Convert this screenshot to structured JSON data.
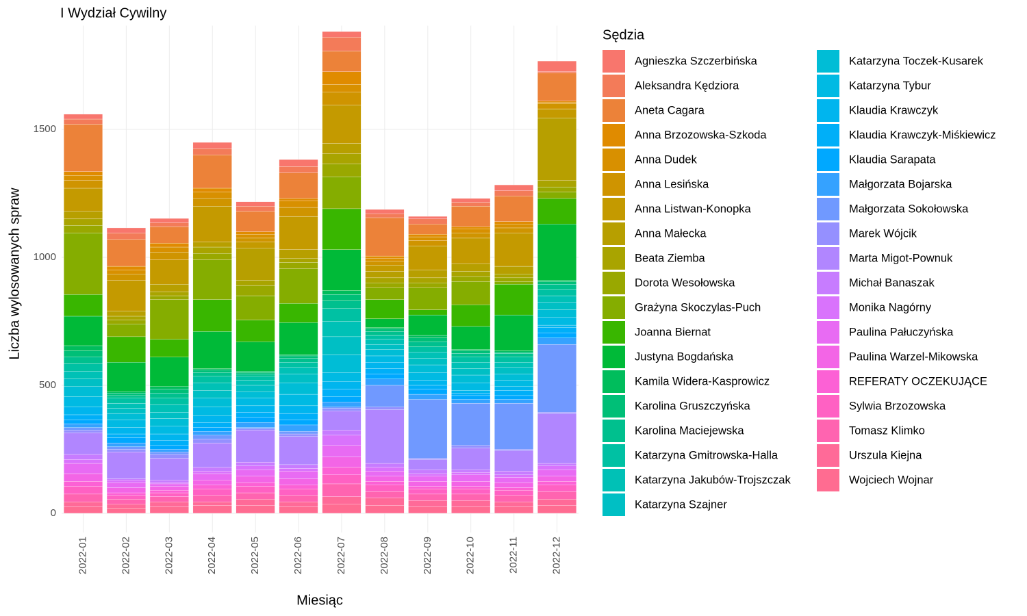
{
  "chart_data": {
    "type": "stacked_bar",
    "title": "I Wydział Cywilny",
    "x_label": "Miesiąc",
    "y_label": "Liczba wylosowanych spraw",
    "legend_title": "Sędzia",
    "legend": "right",
    "grid": true,
    "categories": [
      "2022-01",
      "2022-02",
      "2022-03",
      "2022-04",
      "2022-05",
      "2022-06",
      "2022-07",
      "2022-08",
      "2022-09",
      "2022-10",
      "2022-11",
      "2022-12"
    ],
    "ylim": [
      -75,
      1905
    ],
    "yticks": [
      0,
      500,
      1000,
      1500
    ],
    "series": [
      {
        "name": "Agnieszka Szczerbińska",
        "color": "#F8766D",
        "values": [
          19,
          20,
          17,
          24,
          17,
          27,
          22,
          17,
          10,
          15,
          23,
          42
        ]
      },
      {
        "name": "Aleksandra Kędziora",
        "color": "#F37B59",
        "values": [
          20,
          25,
          15,
          25,
          20,
          25,
          55,
          15,
          20,
          15,
          20,
          5
        ]
      },
      {
        "name": "Aneta Cagara",
        "color": "#EC8239",
        "values": [
          185,
          105,
          65,
          130,
          80,
          100,
          80,
          150,
          40,
          80,
          100,
          110
        ]
      },
      {
        "name": "Anna Brzozowska-Szkoda",
        "color": "#E08B00",
        "values": [
          15,
          15,
          15,
          15,
          10,
          10,
          50,
          10,
          10,
          10,
          10,
          5
        ]
      },
      {
        "name": "Anna Dudek",
        "color": "#D89000",
        "values": [
          20,
          15,
          20,
          25,
          15,
          25,
          30,
          10,
          15,
          15,
          15,
          5
        ]
      },
      {
        "name": "Anna Lesińska",
        "color": "#CF9400",
        "values": [
          30,
          25,
          30,
          30,
          15,
          35,
          50,
          15,
          20,
          20,
          20,
          20
        ]
      },
      {
        "name": "Anna Listwan-Konopka",
        "color": "#C49A00",
        "values": [
          90,
          120,
          95,
          140,
          25,
          130,
          150,
          25,
          95,
          100,
          130,
          35
        ]
      },
      {
        "name": "Anna Małecka",
        "color": "#B79F00",
        "values": [
          30,
          20,
          30,
          20,
          125,
          35,
          40,
          25,
          30,
          30,
          30,
          245
        ]
      },
      {
        "name": "Beata Ziemba",
        "color": "#A9A400",
        "values": [
          25,
          15,
          15,
          25,
          20,
          15,
          40,
          20,
          20,
          20,
          15,
          25
        ]
      },
      {
        "name": "Dorota Wesołowska",
        "color": "#99A800",
        "values": [
          30,
          15,
          15,
          25,
          40,
          25,
          50,
          20,
          20,
          20,
          15,
          20
        ]
      },
      {
        "name": "Grażyna Skoczylas-Puch",
        "color": "#85AD00",
        "values": [
          240,
          50,
          155,
          155,
          95,
          135,
          125,
          45,
          85,
          90,
          10,
          25
        ]
      },
      {
        "name": "Joanna Biernat",
        "color": "#39B600",
        "values": [
          85,
          100,
          70,
          125,
          85,
          75,
          160,
          75,
          20,
          85,
          120,
          100
        ]
      },
      {
        "name": "Justyna Bogdańska",
        "color": "#00BA38",
        "values": [
          115,
          115,
          115,
          145,
          115,
          125,
          160,
          35,
          80,
          90,
          140,
          220
        ]
      },
      {
        "name": "Kamila Widera-Kasprowicz",
        "color": "#00BD5C",
        "values": [
          20,
          5,
          10,
          5,
          5,
          5,
          15,
          5,
          10,
          5,
          5,
          5
        ]
      },
      {
        "name": "Karolina Gruszczyńska",
        "color": "#00BF77",
        "values": [
          25,
          10,
          15,
          10,
          5,
          10,
          25,
          10,
          15,
          10,
          5,
          10
        ]
      },
      {
        "name": "Karolina Maciejewska",
        "color": "#00C08E",
        "values": [
          25,
          10,
          20,
          15,
          10,
          15,
          30,
          15,
          20,
          15,
          15,
          20
        ]
      },
      {
        "name": "Katarzyna Gmitrowska-Halla",
        "color": "#00C1A3",
        "values": [
          30,
          20,
          25,
          25,
          15,
          20,
          50,
          15,
          20,
          20,
          20,
          25
        ]
      },
      {
        "name": "Katarzyna Jakubów-Trojszczak",
        "color": "#00C1B6",
        "values": [
          30,
          20,
          30,
          30,
          20,
          25,
          60,
          20,
          25,
          25,
          20,
          25
        ]
      },
      {
        "name": "Katarzyna Szajner",
        "color": "#00BFC4",
        "values": [
          30,
          20,
          25,
          30,
          25,
          35,
          70,
          20,
          25,
          25,
          25,
          30
        ]
      },
      {
        "name": "Katarzyna Toczek-Kusarek",
        "color": "#00BDD6",
        "values": [
          40,
          25,
          30,
          35,
          25,
          45,
          70,
          25,
          30,
          30,
          25,
          30
        ]
      },
      {
        "name": "Katarzyna Tybur",
        "color": "#00BAE3",
        "values": [
          40,
          30,
          30,
          35,
          30,
          45,
          35,
          25,
          30,
          30,
          25,
          30
        ]
      },
      {
        "name": "Klaudia Krawczyk",
        "color": "#00B5EE",
        "values": [
          30,
          25,
          25,
          25,
          25,
          30,
          30,
          25,
          20,
          10,
          15,
          10
        ]
      },
      {
        "name": "Klaudia Krawczyk-Miśkiewicz",
        "color": "#00AFF8",
        "values": [
          20,
          15,
          20,
          20,
          20,
          25,
          30,
          20,
          15,
          10,
          20,
          20
        ]
      },
      {
        "name": "Klaudia Sarapata",
        "color": "#00A8FF",
        "values": [
          15,
          20,
          15,
          15,
          20,
          20,
          20,
          20,
          20,
          15,
          15,
          20
        ]
      },
      {
        "name": "Małgorzata Bojarska",
        "color": "#35A2FF",
        "values": [
          15,
          15,
          10,
          15,
          20,
          25,
          20,
          25,
          20,
          15,
          15,
          25
        ]
      },
      {
        "name": "Małgorzata Sokołowska",
        "color": "#7099FF",
        "values": [
          10,
          10,
          10,
          15,
          5,
          10,
          5,
          85,
          230,
          165,
          180,
          265
        ]
      },
      {
        "name": "Marek Wójcik",
        "color": "#9590FF",
        "values": [
          10,
          10,
          15,
          15,
          5,
          10,
          10,
          10,
          5,
          10,
          5,
          5
        ]
      },
      {
        "name": "Marta Migot-Pownuk",
        "color": "#B186FF",
        "values": [
          85,
          105,
          85,
          95,
          125,
          110,
          75,
          210,
          40,
          85,
          80,
          195
        ]
      },
      {
        "name": "Michał Banaszak",
        "color": "#C77CFF",
        "values": [
          20,
          5,
          10,
          15,
          15,
          15,
          20,
          15,
          15,
          10,
          15,
          10
        ]
      },
      {
        "name": "Monika Nagórny",
        "color": "#D973FC",
        "values": [
          15,
          10,
          5,
          10,
          15,
          10,
          40,
          15,
          10,
          10,
          10,
          15
        ]
      },
      {
        "name": "Paulina Pałuczyńska",
        "color": "#E86BF3",
        "values": [
          40,
          20,
          10,
          25,
          25,
          30,
          45,
          20,
          20,
          25,
          20,
          25
        ]
      },
      {
        "name": "Paulina Warzel-Mikowska",
        "color": "#F365E6",
        "values": [
          30,
          20,
          15,
          20,
          25,
          25,
          40,
          20,
          20,
          20,
          20,
          20
        ]
      },
      {
        "name": "REFERATY OCZEKUJĄCE",
        "color": "#FC61D5",
        "values": [
          20,
          10,
          10,
          15,
          15,
          15,
          30,
          15,
          10,
          10,
          10,
          15
        ]
      },
      {
        "name": "Sylwia Brzozowska",
        "color": "#FF61C3",
        "values": [
          30,
          15,
          15,
          25,
          25,
          25,
          35,
          25,
          20,
          20,
          20,
          25
        ]
      },
      {
        "name": "Tomasz Klimko",
        "color": "#FF64B0",
        "values": [
          30,
          20,
          20,
          25,
          25,
          25,
          50,
          25,
          25,
          25,
          25,
          30
        ]
      },
      {
        "name": "Urszula Kiejna",
        "color": "#FF6A98",
        "values": [
          20,
          15,
          20,
          15,
          25,
          20,
          30,
          30,
          25,
          25,
          20,
          25
        ]
      },
      {
        "name": "Wojciech Wojnar",
        "color": "#FF6C91",
        "values": [
          25,
          20,
          25,
          30,
          30,
          25,
          35,
          30,
          25,
          25,
          25,
          30
        ]
      }
    ]
  }
}
